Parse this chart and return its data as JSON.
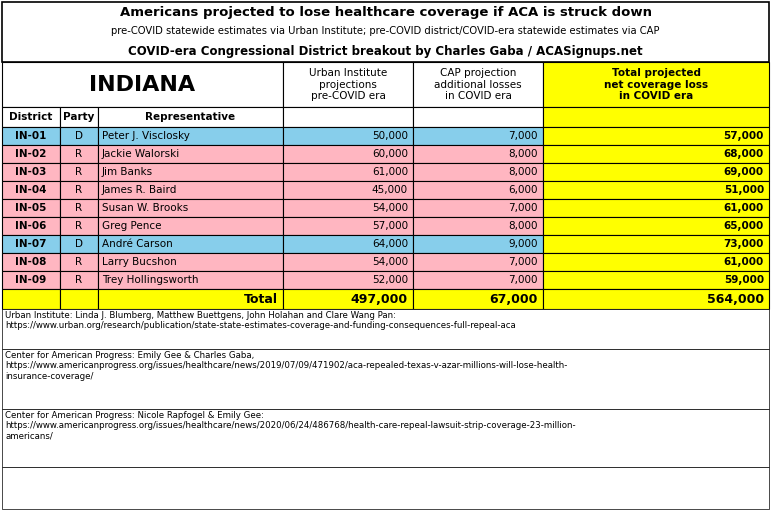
{
  "title_line1": "Americans projected to lose healthcare coverage if ACA is struck down",
  "title_line2": "pre-COVID statewide estimates via Urban Institute; pre-COVID district/COVID-era statewide estimates via CAP",
  "title_line3": "COVID-era Congressional District breakout by Charles Gaba / ACASignups.net",
  "state": "INDIANA",
  "col_headers": [
    "District",
    "Party",
    "Representative",
    "Urban Institute\nprojections\npre-COVID era",
    "CAP projection\nadditional losses\nin COVID era",
    "Total projected\nnet coverage loss\nin COVID era"
  ],
  "rows": [
    [
      "IN-01",
      "D",
      "Peter J. Visclosky",
      "50,000",
      "7,000",
      "57,000"
    ],
    [
      "IN-02",
      "R",
      "Jackie Walorski",
      "60,000",
      "8,000",
      "68,000"
    ],
    [
      "IN-03",
      "R",
      "Jim Banks",
      "61,000",
      "8,000",
      "69,000"
    ],
    [
      "IN-04",
      "R",
      "James R. Baird",
      "45,000",
      "6,000",
      "51,000"
    ],
    [
      "IN-05",
      "R",
      "Susan W. Brooks",
      "54,000",
      "7,000",
      "61,000"
    ],
    [
      "IN-06",
      "R",
      "Greg Pence",
      "57,000",
      "8,000",
      "65,000"
    ],
    [
      "IN-07",
      "D",
      "André Carson",
      "64,000",
      "9,000",
      "73,000"
    ],
    [
      "IN-08",
      "R",
      "Larry Bucshon",
      "54,000",
      "7,000",
      "61,000"
    ],
    [
      "IN-09",
      "R",
      "Trey Hollingsworth",
      "52,000",
      "7,000",
      "59,000"
    ]
  ],
  "total_row": [
    "",
    "",
    "Total",
    "497,000",
    "67,000",
    "564,000"
  ],
  "color_D": "#87CEEB",
  "color_R": "#FFB6C1",
  "color_total_bg": "#FFFF00",
  "color_last_col_header_bg": "#FFFF00",
  "color_last_col_bg": "#FFFF00",
  "footnote1": "Urban Institute: Linda J. Blumberg, Matthew Buettgens, John Holahan and Clare Wang Pan:\nhttps://www.urban.org/research/publication/state-state-estimates-coverage-and-funding-consequences-full-repeal-aca",
  "footnote2": "Center for American Progress: Emily Gee & Charles Gaba,\nhttps://www.americanprogress.org/issues/healthcare/news/2019/07/09/471902/aca-repealed-texas-v-azar-millions-will-lose-health-\ninsurance-coverage/",
  "footnote3": "Center for American Progress: Nicole Rapfogel & Emily Gee:\nhttps://www.americanprogress.org/issues/healthcare/news/2020/06/24/486768/health-care-repeal-lawsuit-strip-coverage-23-million-\namericans/"
}
